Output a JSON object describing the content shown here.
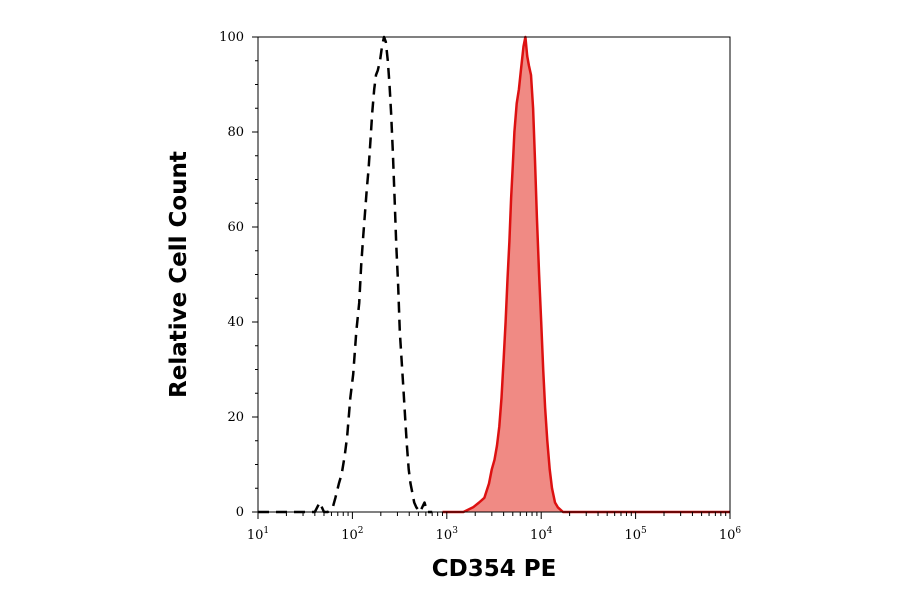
{
  "chart_data": {
    "type": "area",
    "title": "",
    "xlabel": "CD354 PE",
    "ylabel": "Relative Cell Count",
    "x_scale": "log",
    "xlim": [
      10,
      1000000
    ],
    "ylim": [
      0,
      100
    ],
    "grid": false,
    "x_ticks": [
      {
        "base": "10",
        "exp": "1"
      },
      {
        "base": "10",
        "exp": "2"
      },
      {
        "base": "10",
        "exp": "3"
      },
      {
        "base": "10",
        "exp": "4"
      },
      {
        "base": "10",
        "exp": "5"
      },
      {
        "base": "10",
        "exp": "6"
      }
    ],
    "y_ticks": [
      "0",
      "20",
      "40",
      "60",
      "80",
      "100"
    ],
    "series": [
      {
        "style": "dashed-line",
        "color": "#000000",
        "points": [
          [
            10,
            0
          ],
          [
            25,
            0
          ],
          [
            40,
            0
          ],
          [
            45,
            2
          ],
          [
            50,
            0
          ],
          [
            55,
            0
          ],
          [
            62,
            1
          ],
          [
            66,
            3
          ],
          [
            72,
            6
          ],
          [
            77,
            8
          ],
          [
            83,
            12
          ],
          [
            88,
            16
          ],
          [
            95,
            24
          ],
          [
            102,
            29
          ],
          [
            110,
            38
          ],
          [
            118,
            44
          ],
          [
            124,
            52
          ],
          [
            130,
            58
          ],
          [
            136,
            63
          ],
          [
            142,
            68
          ],
          [
            148,
            72
          ],
          [
            155,
            78
          ],
          [
            162,
            84
          ],
          [
            170,
            89
          ],
          [
            178,
            92
          ],
          [
            186,
            93
          ],
          [
            196,
            95
          ],
          [
            206,
            98
          ],
          [
            216,
            100
          ],
          [
            226,
            99
          ],
          [
            237,
            95
          ],
          [
            247,
            90
          ],
          [
            257,
            84
          ],
          [
            268,
            76
          ],
          [
            280,
            66
          ],
          [
            292,
            56
          ],
          [
            305,
            48
          ],
          [
            318,
            38
          ],
          [
            332,
            32
          ],
          [
            347,
            26
          ],
          [
            362,
            20
          ],
          [
            378,
            14
          ],
          [
            395,
            9
          ],
          [
            413,
            6
          ],
          [
            432,
            4
          ],
          [
            452,
            2
          ],
          [
            475,
            1
          ],
          [
            520,
            0
          ],
          [
            580,
            2
          ],
          [
            620,
            0
          ],
          [
            700,
            0
          ]
        ]
      },
      {
        "style": "filled-area",
        "color": "#dd1111",
        "fill": "#f08a84",
        "points": [
          [
            900,
            0
          ],
          [
            1500,
            0
          ],
          [
            1900,
            1
          ],
          [
            2200,
            2
          ],
          [
            2500,
            3
          ],
          [
            2800,
            6
          ],
          [
            3000,
            9
          ],
          [
            3200,
            11
          ],
          [
            3400,
            14
          ],
          [
            3600,
            18
          ],
          [
            3800,
            24
          ],
          [
            4000,
            32
          ],
          [
            4200,
            40
          ],
          [
            4400,
            49
          ],
          [
            4600,
            57
          ],
          [
            4800,
            66
          ],
          [
            5000,
            73
          ],
          [
            5200,
            80
          ],
          [
            5500,
            86
          ],
          [
            5800,
            89
          ],
          [
            6100,
            93
          ],
          [
            6500,
            98
          ],
          [
            6800,
            100
          ],
          [
            7100,
            96
          ],
          [
            7400,
            94
          ],
          [
            7800,
            92
          ],
          [
            8200,
            85
          ],
          [
            8600,
            74
          ],
          [
            9000,
            62
          ],
          [
            9500,
            50
          ],
          [
            10000,
            40
          ],
          [
            10500,
            30
          ],
          [
            11000,
            22
          ],
          [
            11600,
            15
          ],
          [
            12300,
            9
          ],
          [
            13000,
            5
          ],
          [
            14000,
            2
          ],
          [
            15000,
            1
          ],
          [
            17000,
            0
          ],
          [
            1000000,
            0
          ]
        ]
      }
    ]
  }
}
